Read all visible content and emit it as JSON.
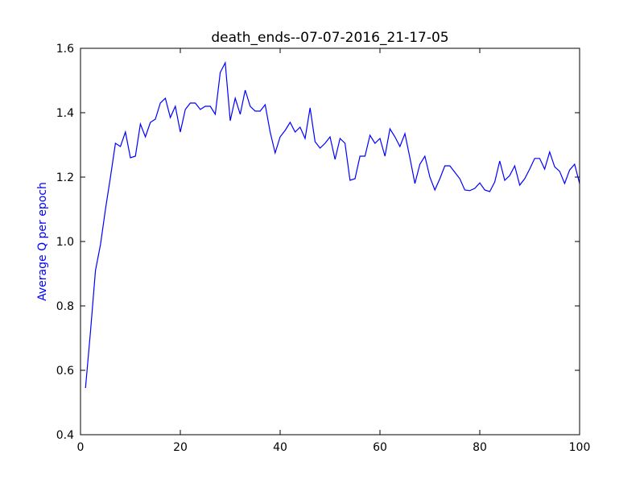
{
  "chart_data": {
    "type": "line",
    "title": "death_ends--07-07-2016_21-17-05",
    "xlabel": "",
    "ylabel": "Average Q per epoch",
    "xlim": [
      0,
      100
    ],
    "ylim": [
      0.4,
      1.6
    ],
    "xticks": [
      0,
      20,
      40,
      60,
      80,
      100
    ],
    "yticks": [
      0.4,
      0.6,
      0.8,
      1.0,
      1.2,
      1.4,
      1.6
    ],
    "xtick_labels": [
      "0",
      "20",
      "40",
      "60",
      "80",
      "100"
    ],
    "ytick_labels": [
      "0.4",
      "0.6",
      "0.8",
      "1.0",
      "1.2",
      "1.4",
      "1.6"
    ],
    "grid": false,
    "colors": {
      "line": "#0000ff",
      "ylabel": "#0000ff",
      "axes": "#000000"
    },
    "series": [
      {
        "x": [
          1,
          2,
          3,
          4,
          5,
          6,
          7,
          8,
          9,
          10,
          11,
          12,
          13,
          14,
          15,
          16,
          17,
          18,
          19,
          20,
          21,
          22,
          23,
          24,
          25,
          26,
          27,
          28,
          29,
          30,
          31,
          32,
          33,
          34,
          35,
          36,
          37,
          38,
          39,
          40,
          41,
          42,
          43,
          44,
          45,
          46,
          47,
          48,
          49,
          50,
          51,
          52,
          53,
          54,
          55,
          56,
          57,
          58,
          59,
          60,
          61,
          62,
          63,
          64,
          65,
          66,
          67,
          68,
          69,
          70,
          71,
          72,
          73,
          74,
          75,
          76,
          77,
          78,
          79,
          80,
          81,
          82,
          83,
          84,
          85,
          86,
          87,
          88,
          89,
          90,
          91,
          92,
          93,
          94,
          95,
          96,
          97,
          98,
          99,
          100
        ],
        "values": [
          0.545,
          0.72,
          0.91,
          0.99,
          1.1,
          1.2,
          1.305,
          1.295,
          1.34,
          1.26,
          1.265,
          1.365,
          1.325,
          1.37,
          1.38,
          1.43,
          1.445,
          1.385,
          1.42,
          1.34,
          1.41,
          1.43,
          1.43,
          1.41,
          1.42,
          1.42,
          1.395,
          1.525,
          1.555,
          1.375,
          1.445,
          1.395,
          1.47,
          1.42,
          1.405,
          1.405,
          1.425,
          1.34,
          1.275,
          1.325,
          1.345,
          1.37,
          1.34,
          1.355,
          1.32,
          1.415,
          1.31,
          1.29,
          1.305,
          1.325,
          1.255,
          1.32,
          1.305,
          1.19,
          1.195,
          1.265,
          1.265,
          1.33,
          1.305,
          1.32,
          1.265,
          1.35,
          1.325,
          1.295,
          1.335,
          1.26,
          1.18,
          1.24,
          1.265,
          1.2,
          1.16,
          1.195,
          1.235,
          1.235,
          1.215,
          1.195,
          1.16,
          1.158,
          1.165,
          1.182,
          1.16,
          1.155,
          1.185,
          1.25,
          1.19,
          1.205,
          1.235,
          1.175,
          1.195,
          1.225,
          1.258,
          1.258,
          1.225,
          1.278,
          1.232,
          1.218,
          1.18,
          1.222,
          1.24,
          1.18
        ]
      }
    ]
  }
}
